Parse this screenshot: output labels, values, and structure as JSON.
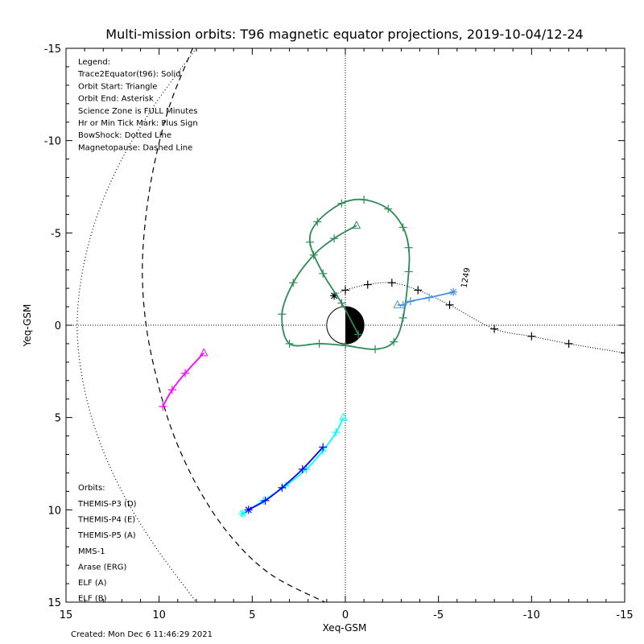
{
  "chart_data": {
    "type": "line",
    "title": "Multi-mission orbits: T96 magnetic equator projections, 2019-10-04/12-24",
    "xlabel": "Xeq-GSM",
    "ylabel": "Yeq-GSM",
    "xlim": [
      15,
      -15
    ],
    "ylim": [
      15,
      -15
    ],
    "x_ticks": [
      "15",
      "10",
      "5",
      "0",
      "-5",
      "-10",
      "-15"
    ],
    "y_ticks": [
      "-15",
      "-10",
      "-5",
      "0",
      "5",
      "10",
      "15"
    ],
    "grid": false,
    "legend_header": [
      "Legend:",
      "Trace2Equator(t96): Solid",
      "Orbit Start: Triangle",
      "Orbit End: Asterisk",
      "Science Zone is FULL Minutes",
      "Hr or Min Tick Mark: Plus Sign",
      "BowShock: Dotted Line",
      "Magnetopause: Dashed Line"
    ],
    "orbits_header": "Orbits:",
    "colors": {
      "themis_d": "#00ffff",
      "themis_e": "#0000ff",
      "themis_a": "#ff00ff",
      "mms1": "#000000",
      "arase": "#2e8b57",
      "elf_a": "#4a90e2",
      "elf_b": "#ff0000"
    },
    "series": [
      {
        "name": "THEMIS-P3 (D)",
        "color": "#00ffff",
        "x": [
          5.5,
          4.4,
          3.2,
          2.1,
          1.2,
          0.5,
          0.1
        ],
        "y": [
          10.2,
          9.5,
          8.7,
          7.8,
          6.8,
          5.8,
          5.0
        ]
      },
      {
        "name": "THEMIS-P4 (E)",
        "color": "#0000ff",
        "x": [
          5.2,
          4.3,
          3.4,
          2.3,
          1.2
        ],
        "y": [
          10.0,
          9.5,
          8.8,
          7.8,
          6.6
        ]
      },
      {
        "name": "THEMIS-P5 (A)",
        "color": "#ff00ff",
        "x": [
          7.6,
          8.6,
          9.3,
          9.8
        ],
        "y": [
          1.5,
          2.6,
          3.5,
          4.4
        ]
      },
      {
        "name": "MMS-1",
        "color": "#000000",
        "x": [
          0.6,
          0.0,
          -1.2,
          -2.5,
          -3.9,
          -5.6,
          -8.0,
          -10.0,
          -12.0,
          -15.0
        ],
        "y": [
          -1.6,
          -1.9,
          -2.2,
          -2.3,
          -1.9,
          -1.1,
          0.2,
          0.6,
          1.0,
          1.5
        ]
      },
      {
        "name": "Arase (ERG)",
        "color": "#2e8b57",
        "x": [
          -0.6,
          0.6,
          1.7,
          2.8,
          3.4,
          3.0,
          1.4,
          0.0,
          -1.6,
          -2.6,
          -3.1,
          -3.4,
          -3.4,
          -3.1,
          -2.3,
          -1.0,
          0.2,
          1.5,
          1.9,
          1.2,
          0.2,
          -0.7
        ],
        "y": [
          -5.4,
          -4.7,
          -3.8,
          -2.3,
          -0.6,
          1.0,
          1.0,
          1.1,
          1.3,
          0.9,
          -0.4,
          -2.9,
          -4.2,
          -5.3,
          -6.3,
          -6.8,
          -6.6,
          -5.6,
          -4.5,
          -2.8,
          -1.2,
          0.5
        ]
      },
      {
        "name": "ELF (A)",
        "color": "#4a90e2",
        "x": [
          -2.8,
          -3.1,
          -3.5,
          -4.5,
          -5.8
        ],
        "y": [
          -1.1,
          -1.1,
          -1.3,
          -1.5,
          -1.8
        ]
      },
      {
        "name": "ELF (B)",
        "color": "#ff0000",
        "x": [],
        "y": []
      }
    ],
    "magnetopause": {
      "style": "dashed",
      "x": [
        8.2,
        9.4,
        10.2,
        10.7,
        10.9,
        10.7,
        10.1,
        9.2,
        7.8,
        6.1,
        4.0,
        1.1
      ],
      "y": [
        -15.0,
        -12.0,
        -9.0,
        -6.0,
        -3.0,
        0.0,
        3.0,
        6.0,
        9.0,
        11.5,
        13.5,
        15.0
      ]
    },
    "bowshock": {
      "style": "dotted",
      "x": [
        8.0,
        10.2,
        12.0,
        13.3,
        14.1,
        14.4,
        14.1,
        13.3,
        12.0,
        10.2,
        8.0
      ],
      "y": [
        -15.0,
        -12.0,
        -9.0,
        -6.0,
        -3.0,
        0.0,
        3.0,
        6.0,
        9.0,
        12.0,
        15.0
      ]
    },
    "annotations": [
      {
        "text": "1249",
        "x": -6.5,
        "y": -2.0
      }
    ],
    "footer": "Created: Mon Dec  6 11:46:29 2021"
  }
}
